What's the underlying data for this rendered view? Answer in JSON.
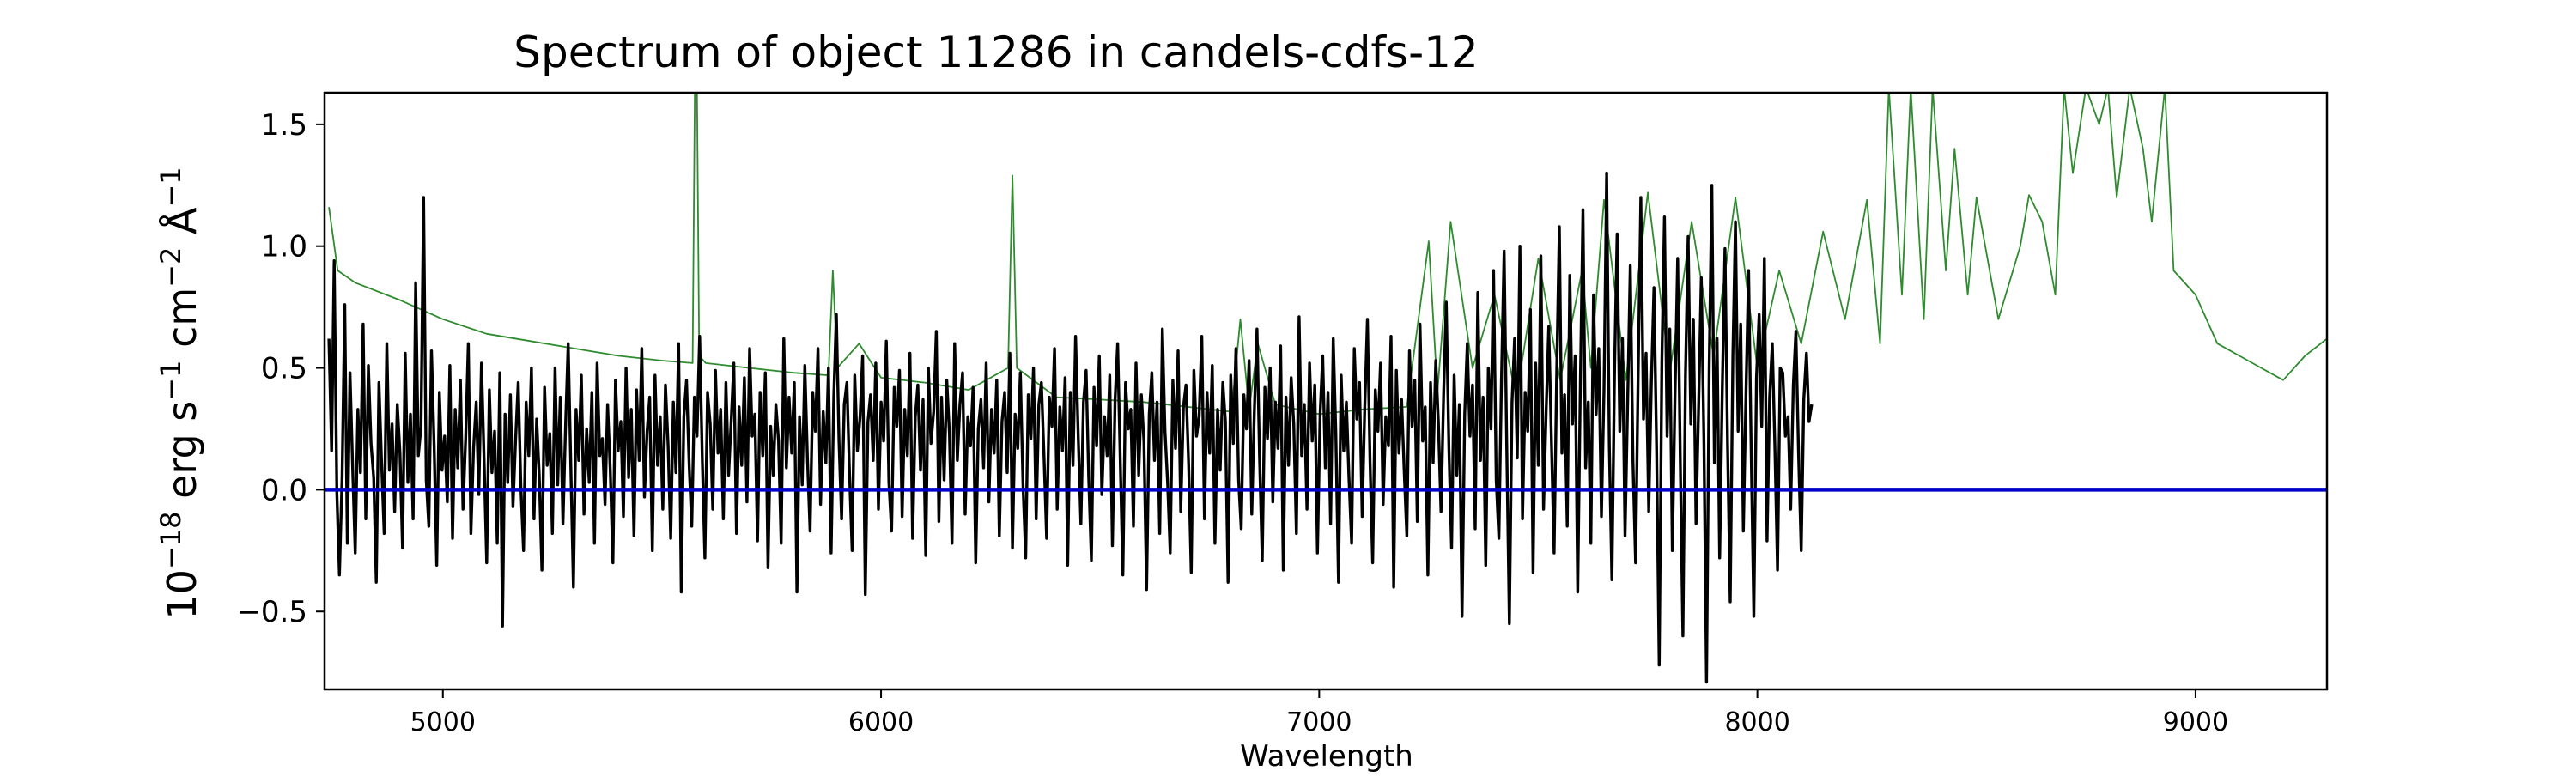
{
  "chart_data": {
    "type": "line",
    "title": "Spectrum of object 11286 in candels-cdfs-12",
    "xlabel": "Wavelength",
    "ylabel_parts": {
      "base": "10",
      "exp1": "−18",
      "mid1": " erg s",
      "exp2": "−1",
      "mid2": " cm",
      "exp3": "−2",
      "mid3": " Å",
      "exp4": "−1"
    },
    "xlim": [
      4730,
      9300
    ],
    "ylim": [
      -0.82,
      1.63
    ],
    "xticks": [
      5000,
      6000,
      7000,
      8000,
      9000
    ],
    "xtick_labels": [
      "5000",
      "6000",
      "7000",
      "8000",
      "9000"
    ],
    "yticks": [
      -0.5,
      0.0,
      0.5,
      1.0,
      1.5
    ],
    "ytick_labels": [
      "−0.5",
      "0.0",
      "0.5",
      "1.0",
      "1.5"
    ],
    "grid": false,
    "legend": "none",
    "colors": {
      "flux": "#000000",
      "error": "#2e8b2e",
      "zero_line": "#0000cc"
    },
    "series": [
      {
        "role": "flux",
        "x_start": 4740,
        "x_step": 6,
        "values": [
          0.62,
          0.16,
          0.94,
          -0.01,
          -0.35,
          0.05,
          0.76,
          -0.22,
          0.48,
          0.09,
          -0.26,
          0.33,
          0.07,
          0.68,
          -0.12,
          0.51,
          0.19,
          0.05,
          -0.38,
          0.44,
          0.12,
          -0.18,
          0.6,
          0.08,
          0.27,
          -0.09,
          0.35,
          0.15,
          -0.24,
          0.56,
          0.03,
          0.31,
          -0.12,
          0.85,
          0.14,
          0.26,
          1.2,
          0.04,
          -0.15,
          0.57,
          0.18,
          -0.31,
          0.4,
          0.08,
          0.22,
          -0.05,
          0.51,
          -0.2,
          0.33,
          0.09,
          0.45,
          -0.08,
          0.21,
          0.6,
          -0.18,
          0.17,
          0.36,
          -0.02,
          0.52,
          0.13,
          -0.3,
          0.41,
          0.07,
          0.24,
          -0.22,
          0.48,
          -0.56,
          0.31,
          0.03,
          0.39,
          -0.07,
          0.21,
          0.44,
          0.01,
          -0.25,
          0.36,
          0.14,
          0.5,
          -0.12,
          0.29,
          0.06,
          -0.33,
          0.42,
          0.1,
          0.23,
          -0.18,
          0.5,
          0.02,
          0.38,
          -0.14,
          0.27,
          0.6,
          0.09,
          -0.4,
          0.33,
          0.12,
          0.47,
          -0.1,
          0.25,
          0.03,
          0.4,
          -0.22,
          0.52,
          0.14,
          0.21,
          -0.06,
          0.35,
          0.08,
          -0.3,
          0.45,
          0.16,
          0.28,
          -0.11,
          0.5,
          0.05,
          0.33,
          -0.19,
          0.41,
          0.12,
          0.58,
          -0.03,
          0.24,
          0.38,
          -0.25,
          0.47,
          0.1,
          0.3,
          -0.08,
          0.43,
          0.18,
          -0.2,
          0.36,
          0.07,
          0.6,
          -0.42,
          0.3,
          0.45,
          0.1,
          -0.15,
          0.38,
          0.22,
          0.63,
          0.12,
          -0.28,
          0.4,
          0.27,
          -0.08,
          0.49,
          0.15,
          0.33,
          -0.12,
          0.44,
          0.06,
          0.28,
          0.52,
          -0.18,
          0.34,
          0.1,
          0.46,
          -0.05,
          0.58,
          0.22,
          0.31,
          -0.21,
          0.4,
          0.14,
          0.48,
          -0.32,
          0.26,
          0.06,
          0.35,
          0.2,
          -0.22,
          0.62,
          0.09,
          0.38,
          0.15,
          0.44,
          -0.42,
          0.3,
          0.02,
          0.51,
          0.13,
          -0.17,
          0.4,
          0.24,
          0.58,
          -0.06,
          0.32,
          0.11,
          0.5,
          -0.26,
          0.38,
          0.72,
          0.2,
          -0.12,
          0.35,
          0.44,
          0.07,
          -0.25,
          0.47,
          0.16,
          0.3,
          0.55,
          -0.43,
          0.28,
          0.39,
          0.12,
          0.52,
          -0.08,
          0.36,
          0.2,
          0.61,
          0.03,
          -0.17,
          0.42,
          0.26,
          0.49,
          -0.11,
          0.33,
          0.14,
          0.56,
          -0.2,
          0.3,
          0.43,
          0.08,
          0.37,
          -0.27,
          0.5,
          0.19,
          0.32,
          0.65,
          -0.13,
          0.38,
          0.04,
          0.45,
          0.23,
          -0.22,
          0.6,
          0.12,
          0.35,
          0.48,
          -0.1,
          0.3,
          0.18,
          0.42,
          -0.3,
          0.25,
          0.37,
          0.09,
          0.52,
          -0.05,
          0.33,
          0.15,
          0.45,
          -0.19,
          0.28,
          0.4,
          0.07,
          0.56,
          -0.24,
          0.31,
          0.17,
          0.48,
          0.02,
          -0.28,
          0.39,
          0.21,
          0.5,
          -0.12,
          0.35,
          0.44,
          0.13,
          -0.2,
          0.38,
          0.26,
          0.58,
          -0.08,
          0.34,
          0.16,
          0.46,
          -0.31,
          0.4,
          0.1,
          0.63,
          0.22,
          -0.14,
          0.36,
          0.49,
          0.05,
          -0.29,
          0.42,
          0.18,
          0.55,
          -0.02,
          0.3,
          0.14,
          0.47,
          -0.23,
          0.37,
          0.6,
          0.11,
          -0.35,
          0.44,
          0.25,
          0.33,
          -0.15,
          0.52,
          0.06,
          0.39,
          0.2,
          -0.41,
          0.31,
          0.48,
          0.12,
          0.36,
          -0.18,
          0.66,
          0.24,
          0.03,
          -0.26,
          0.45,
          0.17,
          0.57,
          -0.09,
          0.34,
          0.43,
          0.1,
          -0.34,
          0.49,
          0.22,
          0.3,
          0.63,
          -0.12,
          0.4,
          0.15,
          0.51,
          -0.22,
          0.33,
          0.08,
          0.44,
          0.28,
          -0.38,
          0.47,
          0.19,
          0.58,
          0.04,
          -0.16,
          0.39,
          0.25,
          0.53,
          -0.1,
          0.32,
          0.66,
          0.13,
          -0.29,
          0.42,
          0.21,
          0.5,
          -0.05,
          0.36,
          0.17,
          0.59,
          -0.33,
          0.38,
          0.1,
          0.46,
          0.27,
          -0.18,
          0.71,
          0.14,
          0.35,
          -0.08,
          0.52,
          0.2,
          0.43,
          -0.26,
          0.31,
          0.55,
          0.09,
          0.4,
          -0.14,
          0.62,
          0.23,
          -0.38,
          0.47,
          0.16,
          0.36,
          0.05,
          -0.22,
          0.58,
          0.29,
          0.44,
          -0.11,
          0.34,
          0.7,
          0.12,
          -0.3,
          0.41,
          0.24,
          0.52,
          -0.06,
          0.3,
          0.18,
          0.63,
          -0.4,
          0.49,
          0.15,
          0.37,
          0.08,
          -0.19,
          0.57,
          0.26,
          0.45,
          -0.13,
          0.68,
          0.2,
          0.34,
          -0.35,
          0.44,
          0.11,
          0.53,
          0.28,
          -0.09,
          0.4,
          0.77,
          0.17,
          -0.24,
          0.47,
          0.06,
          0.35,
          -0.52,
          0.31,
          0.6,
          0.22,
          0.43,
          -0.16,
          0.81,
          0.12,
          0.38,
          -0.31,
          0.5,
          0.25,
          0.9,
          0.04,
          -0.2,
          0.45,
          0.98,
          0.19,
          -0.55,
          0.36,
          0.62,
          0.13,
          1.0,
          -0.12,
          0.4,
          0.24,
          0.74,
          -0.34,
          0.52,
          0.1,
          0.96,
          -0.08,
          0.33,
          0.67,
          0.2,
          -0.26,
          0.47,
          1.08,
          0.15,
          0.39,
          -0.15,
          0.88,
          0.27,
          0.55,
          -0.42,
          0.44,
          1.15,
          0.09,
          0.36,
          -0.22,
          0.8,
          0.31,
          0.58,
          -0.11,
          0.41,
          1.3,
          0.18,
          -0.37,
          0.5,
          1.05,
          0.24,
          0.62,
          -0.19,
          0.37,
          0.92,
          0.12,
          -0.3,
          0.48,
          1.2,
          0.29,
          0.56,
          -0.09,
          0.43,
          0.83,
          0.16,
          -0.72,
          0.53,
          1.12,
          0.22,
          0.66,
          -0.25,
          0.39,
          0.95,
          0.13,
          -0.6,
          0.47,
          1.04,
          0.27,
          0.7,
          -0.14,
          0.36,
          0.87,
          0.2,
          -0.79,
          0.5,
          1.25,
          0.11,
          0.62,
          -0.28,
          0.42,
          0.99,
          0.19,
          -0.46,
          0.55,
          1.1,
          0.24,
          0.68,
          -0.17,
          0.4,
          0.9,
          0.14,
          -0.52,
          0.46,
          0.72,
          0.26,
          0.95,
          -0.21,
          0.38,
          0.6,
          0.18,
          -0.33,
          0.5,
          0.48,
          0.22,
          0.3,
          -0.08,
          0.43,
          0.65,
          0.15,
          -0.25,
          0.37,
          0.56,
          0.28,
          0.35
        ]
      },
      {
        "role": "error",
        "x": [
          4740,
          4760,
          4800,
          4900,
          5000,
          5100,
          5200,
          5300,
          5400,
          5500,
          5570,
          5575,
          5580,
          5585,
          5600,
          5700,
          5800,
          5880,
          5890,
          5900,
          5950,
          6000,
          6100,
          6200,
          6290,
          6300,
          6310,
          6400,
          6500,
          6600,
          6700,
          6800,
          6820,
          6840,
          6860,
          6900,
          7000,
          7100,
          7200,
          7250,
          7270,
          7300,
          7350,
          7400,
          7450,
          7500,
          7550,
          7600,
          7620,
          7650,
          7700,
          7750,
          7800,
          7850,
          7900,
          7950,
          8000,
          8050,
          8100,
          8150,
          8200,
          8250,
          8280,
          8300,
          8330,
          8350,
          8380,
          8400,
          8430,
          8450,
          8480,
          8500,
          8550,
          8600,
          8620,
          8650,
          8680,
          8700,
          8720,
          8750,
          8780,
          8800,
          8820,
          8850,
          8880,
          8900,
          8930,
          8950,
          9000,
          9050,
          9100,
          9150,
          9200,
          9250,
          9300
        ],
        "values": [
          1.16,
          0.9,
          0.85,
          0.78,
          0.7,
          0.64,
          0.61,
          0.58,
          0.55,
          0.53,
          0.52,
          1.65,
          1.65,
          0.55,
          0.52,
          0.5,
          0.48,
          0.47,
          0.9,
          0.5,
          0.6,
          0.46,
          0.44,
          0.41,
          0.5,
          1.29,
          0.5,
          0.38,
          0.37,
          0.36,
          0.34,
          0.32,
          0.7,
          0.33,
          0.6,
          0.35,
          0.31,
          0.33,
          0.34,
          1.02,
          0.4,
          1.1,
          0.5,
          0.8,
          0.38,
          0.95,
          0.45,
          0.9,
          0.5,
          1.19,
          0.45,
          1.22,
          0.48,
          1.1,
          0.55,
          1.2,
          0.5,
          0.9,
          0.6,
          1.06,
          0.7,
          1.19,
          0.6,
          1.65,
          0.8,
          1.65,
          0.7,
          1.65,
          0.9,
          1.4,
          0.8,
          1.2,
          0.7,
          1.0,
          1.21,
          1.1,
          0.8,
          1.65,
          1.3,
          1.65,
          1.5,
          1.65,
          1.2,
          1.65,
          1.4,
          1.1,
          1.65,
          0.9,
          0.8,
          0.6,
          0.55,
          0.5,
          0.45,
          0.55,
          0.62
        ]
      },
      {
        "role": "zero",
        "x": [
          4730,
          9300
        ],
        "values": [
          0.0,
          0.0
        ]
      }
    ]
  }
}
